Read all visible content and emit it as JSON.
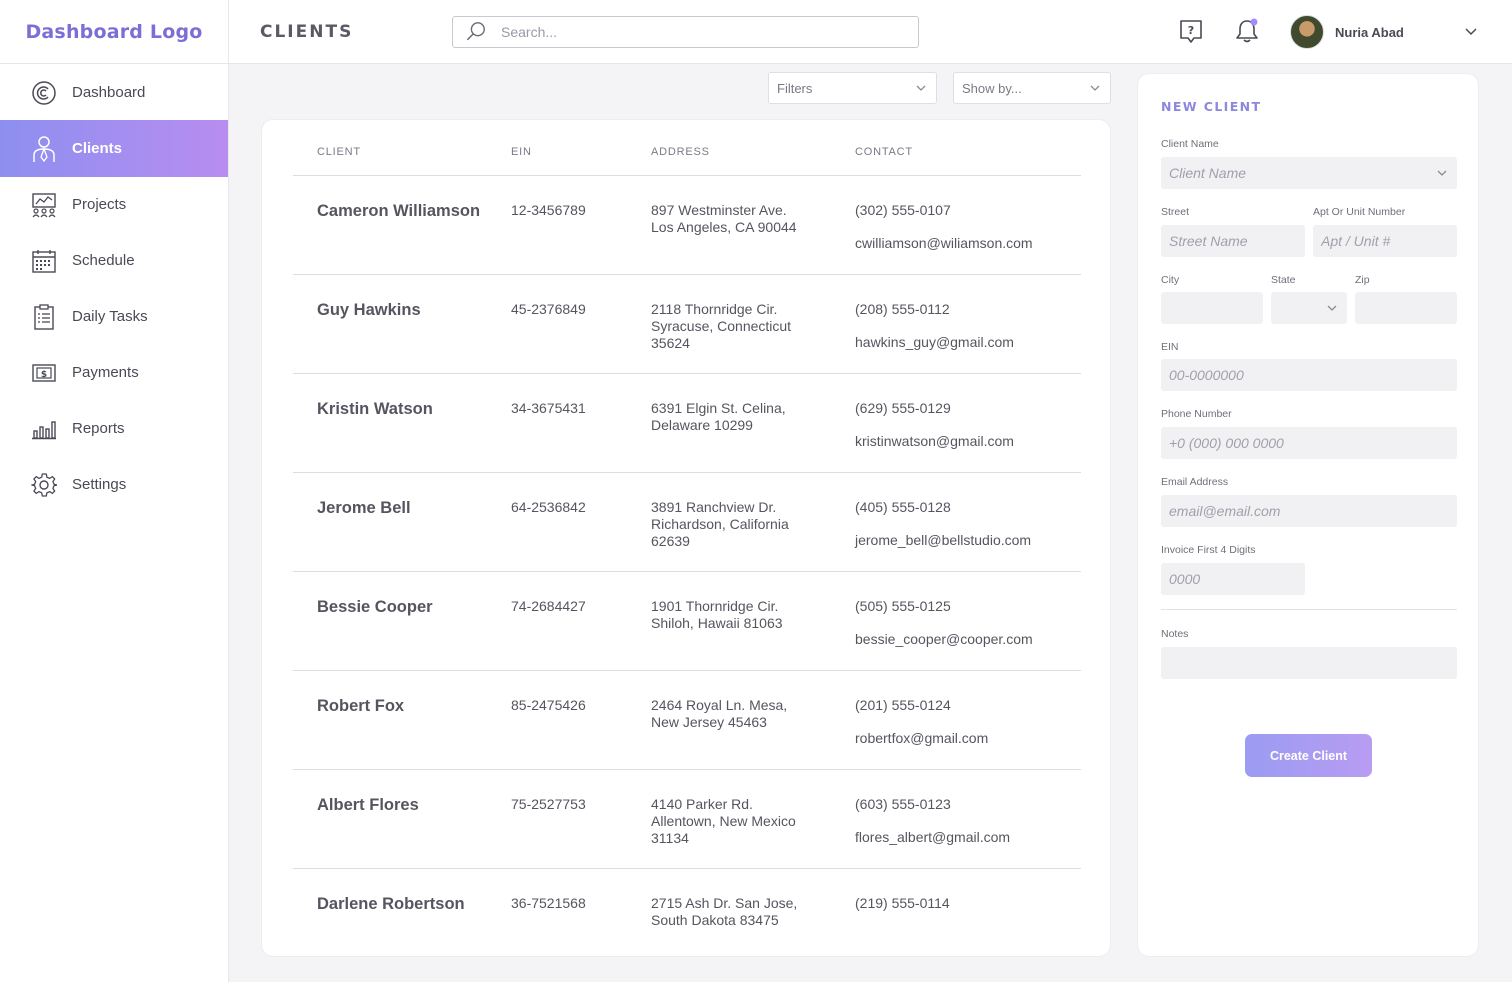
{
  "app": {
    "logo": "Dashboard Logo",
    "page_title": "CLIENTS"
  },
  "search": {
    "placeholder": "Search..."
  },
  "user": {
    "name": "Nuria Abad"
  },
  "sidebar": {
    "items": [
      {
        "label": "Dashboard",
        "icon": "dashboard-icon",
        "active": false
      },
      {
        "label": "Clients",
        "icon": "clients-icon",
        "active": true
      },
      {
        "label": "Projects",
        "icon": "projects-icon",
        "active": false
      },
      {
        "label": "Schedule",
        "icon": "calendar-icon",
        "active": false
      },
      {
        "label": "Daily Tasks",
        "icon": "clipboard-icon",
        "active": false
      },
      {
        "label": "Payments",
        "icon": "dollar-bill-icon",
        "active": false
      },
      {
        "label": "Reports",
        "icon": "bar-chart-icon",
        "active": false
      },
      {
        "label": "Settings",
        "icon": "gear-icon",
        "active": false
      }
    ]
  },
  "filters": {
    "filters_label": "Filters",
    "show_by_label": "Show by..."
  },
  "table": {
    "headers": [
      "CLIENT",
      "EIN",
      "ADDRESS",
      "CONTACT"
    ],
    "rows": [
      {
        "name": "Cameron Williamson",
        "ein": "12-3456789",
        "address": "897 Westminster Ave. Los Angeles, CA 90044",
        "phone": "(302) 555-0107",
        "email": "cwilliamson@wiliamson.com"
      },
      {
        "name": "Guy Hawkins",
        "ein": "45-2376849",
        "address": "2118 Thornridge Cir. Syracuse, Connecticut 35624",
        "phone": "(208) 555-0112",
        "email": "hawkins_guy@gmail.com"
      },
      {
        "name": "Kristin Watson",
        "ein": "34-3675431",
        "address": "6391 Elgin St. Celina, Delaware 10299",
        "phone": "(629) 555-0129",
        "email": "kristinwatson@gmail.com"
      },
      {
        "name": "Jerome Bell",
        "ein": "64-2536842",
        "address": "3891 Ranchview Dr. Richardson, California 62639",
        "phone": "(405) 555-0128",
        "email": "jerome_bell@bellstudio.com"
      },
      {
        "name": "Bessie Cooper",
        "ein": "74-2684427",
        "address": "1901 Thornridge Cir. Shiloh, Hawaii 81063",
        "phone": "(505) 555-0125",
        "email": "bessie_cooper@cooper.com"
      },
      {
        "name": "Robert Fox",
        "ein": "85-2475426",
        "address": "2464 Royal Ln. Mesa, New Jersey 45463",
        "phone": "(201) 555-0124",
        "email": "robertfox@gmail.com"
      },
      {
        "name": "Albert Flores",
        "ein": "75-2527753",
        "address": "4140 Parker Rd. Allentown, New Mexico 31134",
        "phone": "(603) 555-0123",
        "email": "flores_albert@gmail.com"
      },
      {
        "name": "Darlene Robertson",
        "ein": "36-7521568",
        "address": "2715 Ash Dr. San Jose, South Dakota 83475",
        "phone": "(219) 555-0114",
        "email": ""
      }
    ]
  },
  "new_client": {
    "title": "NEW CLIENT",
    "client_name_label": "Client Name",
    "client_name_placeholder": "Client Name",
    "street_label": "Street",
    "street_placeholder": "Street Name",
    "apt_label": "Apt Or Unit Number",
    "apt_placeholder": "Apt / Unit #",
    "city_label": "City",
    "state_label": "State",
    "zip_label": "Zip",
    "ein_label": "EIN",
    "ein_placeholder": "00-0000000",
    "phone_label": "Phone Number",
    "phone_placeholder": "+0 (000) 000 0000",
    "email_label": "Email Address",
    "email_placeholder": "email@email.com",
    "invoice_label": "Invoice First 4 Digits",
    "invoice_placeholder": "0000",
    "notes_label": "Notes",
    "create_button": "Create Client"
  },
  "colors": {
    "accent": "#7b6fd6",
    "active_gradient_start": "#8d8ff0",
    "active_gradient_end": "#b88df0",
    "notification_dot": "#a78bfa"
  }
}
